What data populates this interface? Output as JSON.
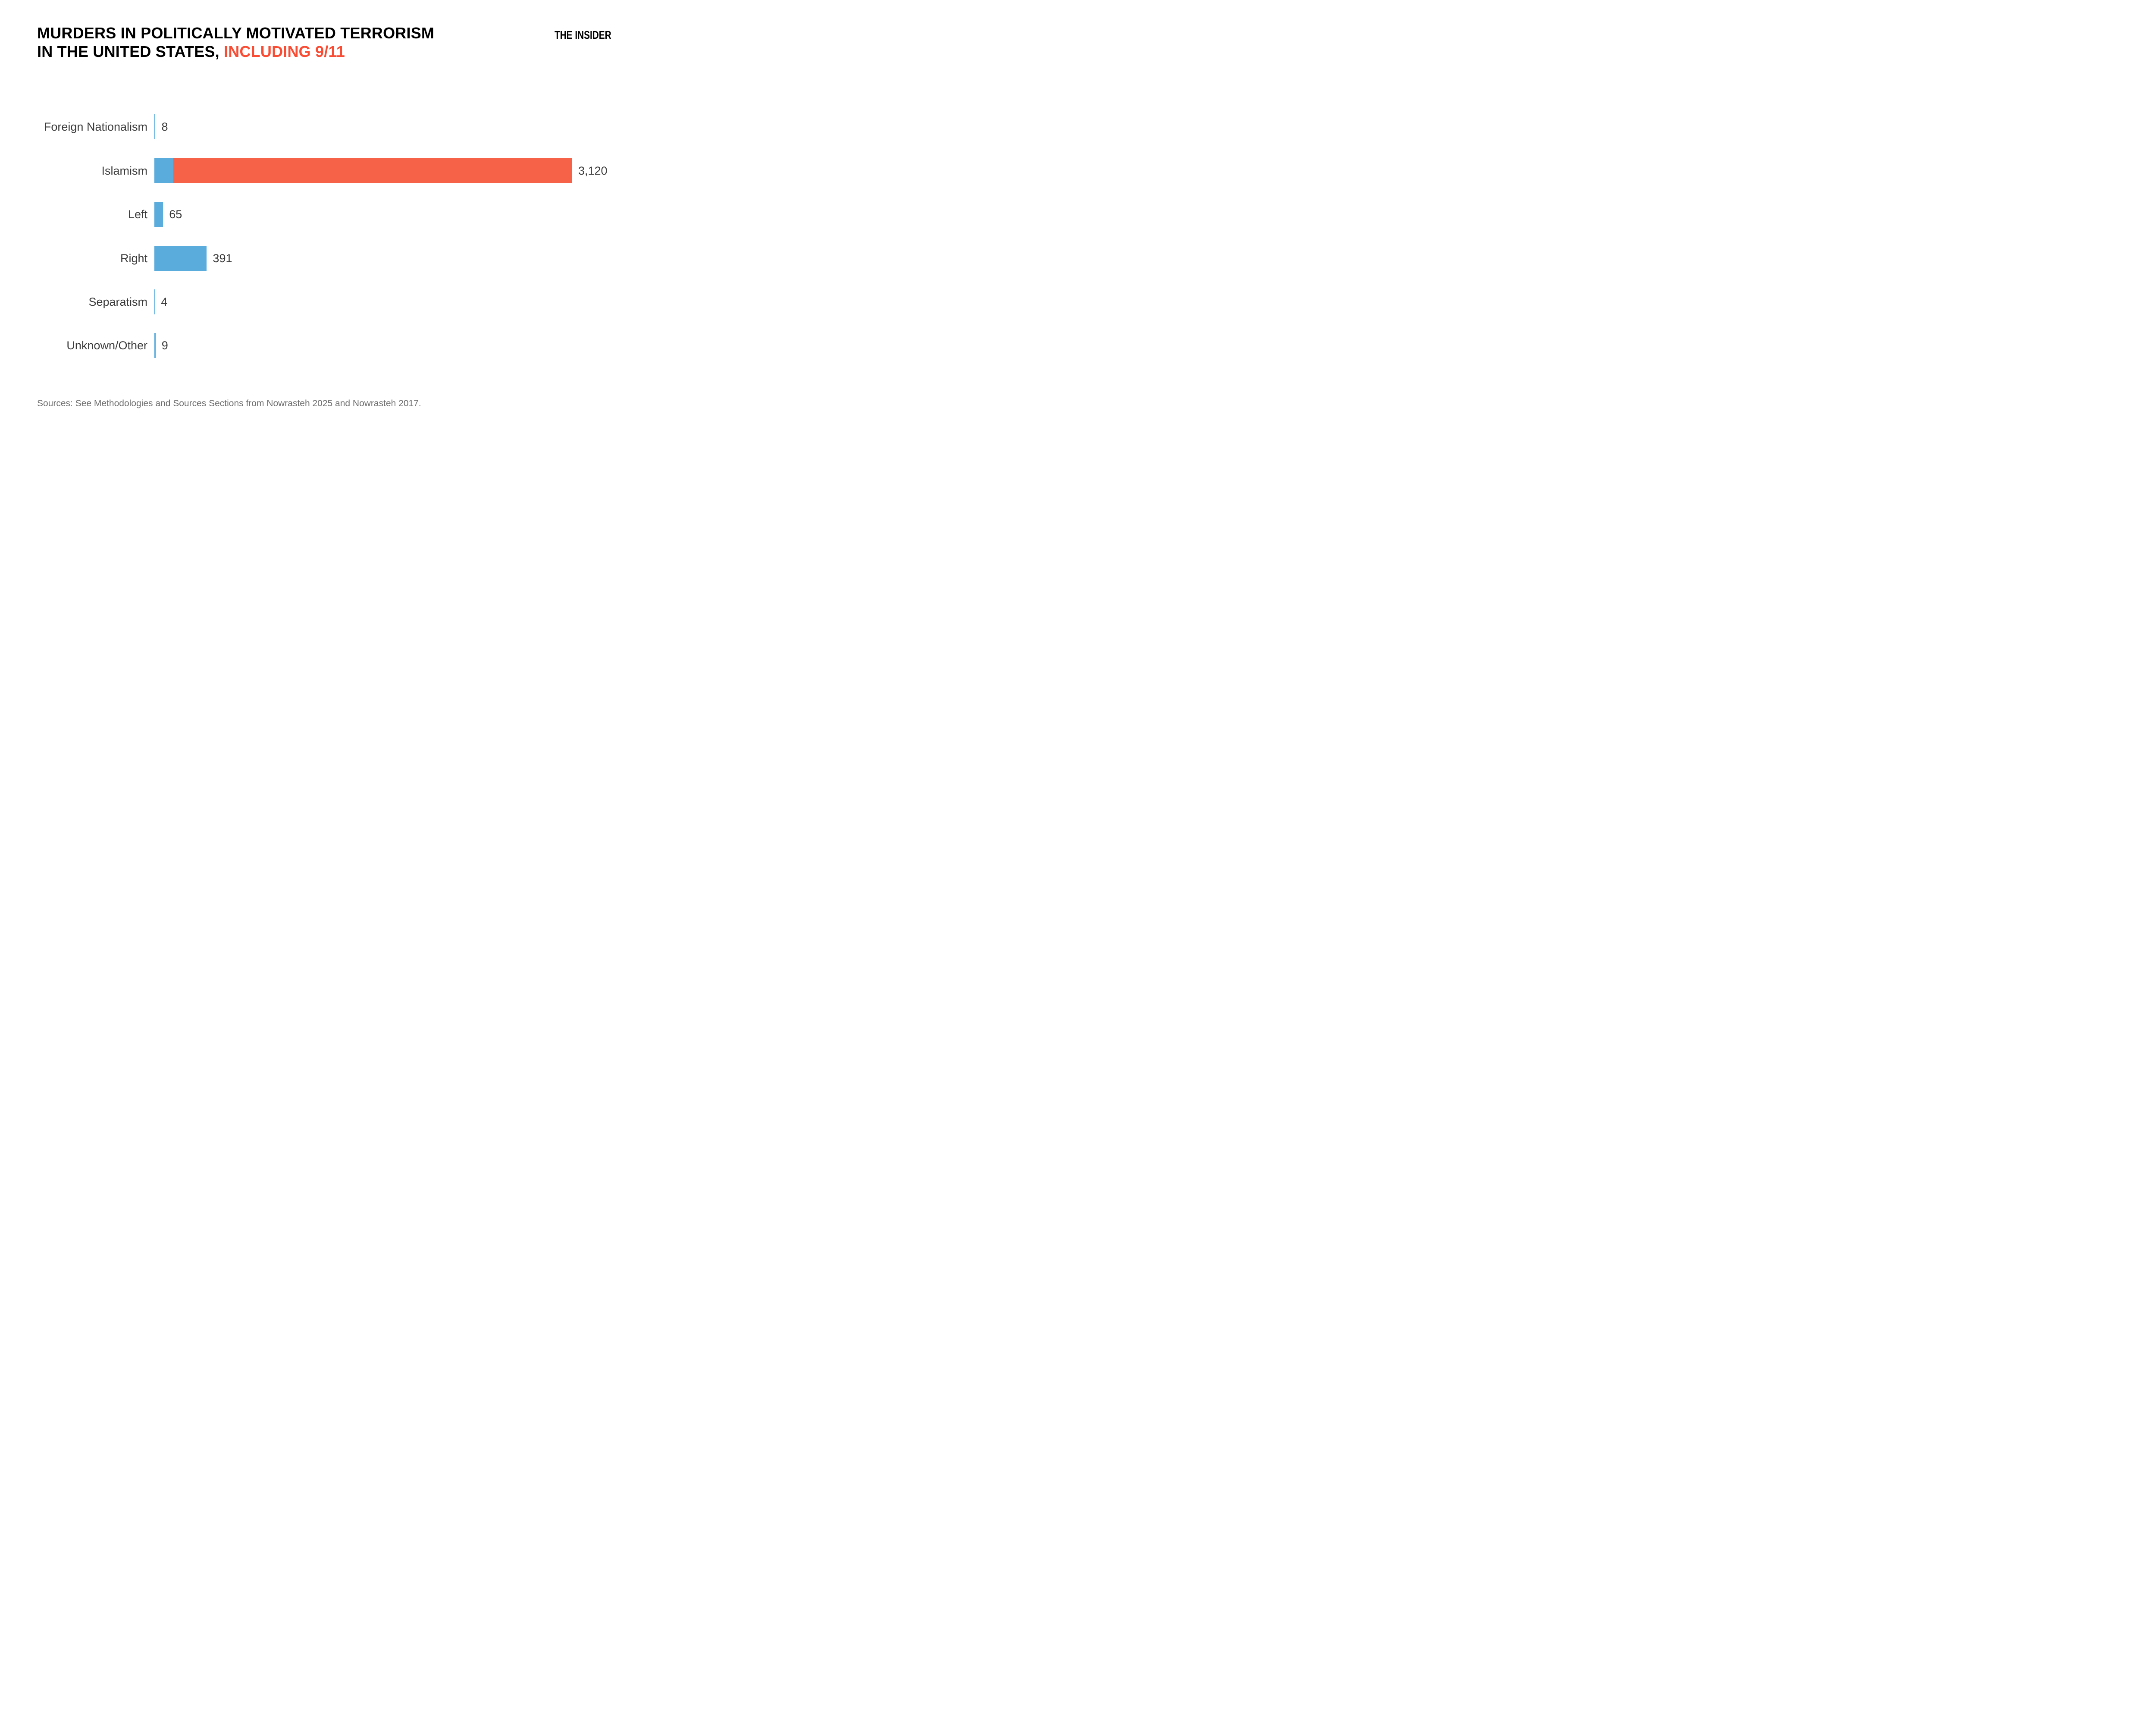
{
  "header": {
    "title_line1": "MURDERS IN POLITICALLY MOTIVATED TERRORISM",
    "title_line2_prefix": "IN THE UNITED STATES, ",
    "title_line2_highlight": "INCLUDING 9/11",
    "brand": "THE INSIDER"
  },
  "colors": {
    "highlight_red": "#FA4B33",
    "bar_blue": "#5AACDD",
    "bar_red": "#F66247",
    "text_dark": "#3B3B3B",
    "text_gray": "#6E6E6E"
  },
  "chart_data": {
    "type": "bar",
    "orientation": "horizontal",
    "title": "Murders in politically motivated terrorism in the United States, including 9/11",
    "xlim": [
      0,
      3120
    ],
    "grid": false,
    "legend": false,
    "categories": [
      "Foreign Nationalism",
      "Islamism",
      "Left",
      "Right",
      "Separatism",
      "Unknown/Other"
    ],
    "values": [
      8,
      3120,
      65,
      391,
      4,
      9
    ],
    "value_labels": [
      "8",
      "3,120",
      "65",
      "391",
      "4",
      "9"
    ],
    "bars": [
      {
        "category": "Foreign Nationalism",
        "value": 8,
        "value_label": "8",
        "segments": [
          {
            "color": "blue",
            "value": 8
          }
        ]
      },
      {
        "category": "Islamism",
        "value": 3120,
        "value_label": "3,120",
        "segments": [
          {
            "color": "blue",
            "value": 143
          },
          {
            "color": "red",
            "value": 2977
          }
        ]
      },
      {
        "category": "Left",
        "value": 65,
        "value_label": "65",
        "segments": [
          {
            "color": "blue",
            "value": 65
          }
        ]
      },
      {
        "category": "Right",
        "value": 391,
        "value_label": "391",
        "segments": [
          {
            "color": "blue",
            "value": 391
          }
        ]
      },
      {
        "category": "Separatism",
        "value": 4,
        "value_label": "4",
        "segments": [
          {
            "color": "blue",
            "value": 4
          }
        ]
      },
      {
        "category": "Unknown/Other",
        "value": 9,
        "value_label": "9",
        "segments": [
          {
            "color": "blue",
            "value": 9
          }
        ]
      }
    ],
    "note": "Islamism bar is drawn as a small blue segment followed by a red segment; only the total 3,120 is labeled on the chart"
  },
  "footer": {
    "source_note": "Sources: See Methodologies and Sources Sections from Nowrasteh 2025 and Nowrasteh 2017."
  }
}
